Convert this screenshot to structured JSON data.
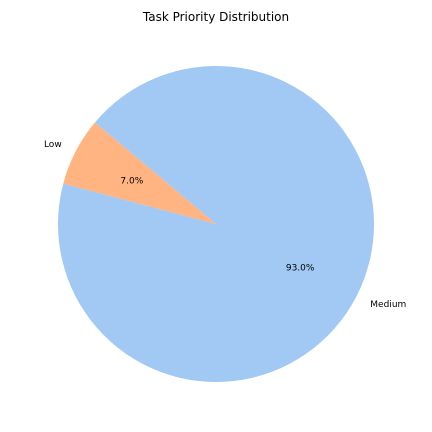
{
  "chart_data": {
    "type": "pie",
    "title": "Task Priority Distribution",
    "slices": [
      {
        "label": "Low",
        "value": 7.0,
        "pct_label": "7.0%",
        "color": "#ffb482"
      },
      {
        "label": "Medium",
        "value": 93.0,
        "pct_label": "93.0%",
        "color": "#a1c9f4"
      }
    ],
    "start_angle_deg": 140,
    "direction": "counterclockwise",
    "legend": "none"
  }
}
